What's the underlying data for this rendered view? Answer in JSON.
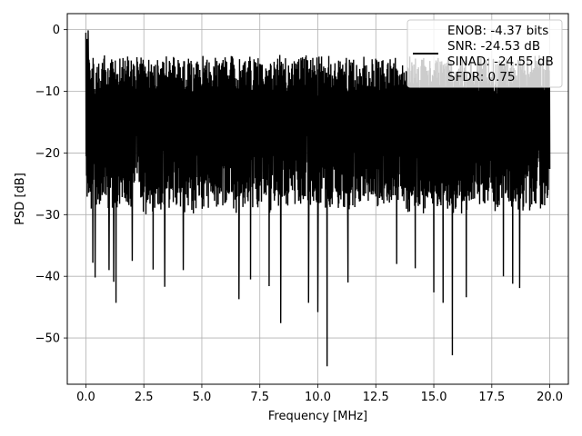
{
  "chart_data": {
    "type": "line",
    "title": "",
    "xlabel": "Frequency [MHz]",
    "ylabel": "PSD [dB]",
    "xlim": [
      -0.8,
      20.8
    ],
    "ylim": [
      -57.5,
      2.6
    ],
    "xticks": [
      0.0,
      2.5,
      5.0,
      7.5,
      10.0,
      12.5,
      15.0,
      17.5,
      20.0
    ],
    "xtick_labels": [
      "0.0",
      "2.5",
      "5.0",
      "7.5",
      "10.0",
      "12.5",
      "15.0",
      "17.5",
      "20.0"
    ],
    "yticks": [
      0,
      -10,
      -20,
      -30,
      -40,
      -50
    ],
    "ytick_labels": [
      "0",
      "−10",
      "−20",
      "−30",
      "−40",
      "−50"
    ],
    "grid": true,
    "legend_position": "top-right",
    "legend_lines": [
      "ENOB: -4.37 bits",
      "SNR: -24.53 dB",
      "SINAD: -24.55 dB",
      "SFDR: 0.75"
    ],
    "series": [
      {
        "color": "#000000",
        "x_range": [
          0.0,
          20.0
        ],
        "noise_band": {
          "upper_db": [
            -10,
            -4
          ],
          "lower_db": [
            -30,
            -26
          ]
        },
        "peaks": [
          {
            "x": 0.0,
            "y": -0.5
          },
          {
            "x": 0.05,
            "y": -1.5
          },
          {
            "x": 0.1,
            "y": -0.1
          },
          {
            "x": 0.15,
            "y": -6.0
          }
        ],
        "dips": [
          {
            "x": 0.3,
            "y": -37.8
          },
          {
            "x": 0.4,
            "y": -40.2
          },
          {
            "x": 1.0,
            "y": -39.0
          },
          {
            "x": 1.2,
            "y": -40.9
          },
          {
            "x": 1.3,
            "y": -44.3
          },
          {
            "x": 2.0,
            "y": -37.5
          },
          {
            "x": 2.9,
            "y": -38.9
          },
          {
            "x": 3.4,
            "y": -41.7
          },
          {
            "x": 4.2,
            "y": -39.0
          },
          {
            "x": 6.6,
            "y": -43.7
          },
          {
            "x": 7.1,
            "y": -40.5
          },
          {
            "x": 7.9,
            "y": -41.6
          },
          {
            "x": 8.4,
            "y": -47.6
          },
          {
            "x": 9.6,
            "y": -44.3
          },
          {
            "x": 10.0,
            "y": -45.8
          },
          {
            "x": 10.4,
            "y": -54.6
          },
          {
            "x": 11.3,
            "y": -41.0
          },
          {
            "x": 13.4,
            "y": -38.0
          },
          {
            "x": 14.2,
            "y": -38.7
          },
          {
            "x": 15.0,
            "y": -42.6
          },
          {
            "x": 15.4,
            "y": -44.3
          },
          {
            "x": 15.8,
            "y": -52.8
          },
          {
            "x": 16.4,
            "y": -43.4
          },
          {
            "x": 18.0,
            "y": -40.0
          },
          {
            "x": 18.4,
            "y": -41.2
          },
          {
            "x": 18.7,
            "y": -41.9
          }
        ]
      }
    ]
  }
}
